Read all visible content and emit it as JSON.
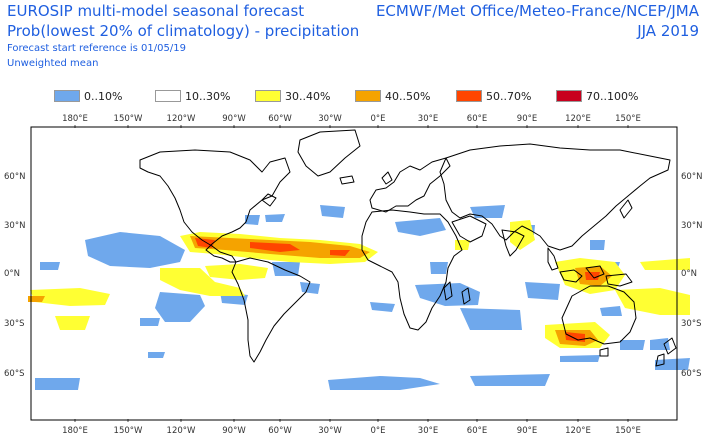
{
  "header": {
    "title_line1": "EUROSIP multi-model seasonal forecast",
    "title_line2": "Prob(lowest 20% of climatology) - precipitation",
    "forecast_ref": "Forecast start reference is 01/05/19",
    "mean_type": "Unweighted mean",
    "centres": "ECMWF/Met Office/Meteo-France/NCEP/JMA",
    "season": "JJA 2019"
  },
  "legend": [
    {
      "label": "0..10%",
      "color": "#6fa8ec"
    },
    {
      "label": "10..30%",
      "color": "#ffffff"
    },
    {
      "label": "30..40%",
      "color": "#ffff33"
    },
    {
      "label": "40..50%",
      "color": "#f5a300"
    },
    {
      "label": "50..70%",
      "color": "#ff4500"
    },
    {
      "label": "70..100%",
      "color": "#c8001e"
    }
  ],
  "axes": {
    "lon_ticks": [
      "180°E",
      "150°W",
      "120°W",
      "90°W",
      "60°W",
      "30°W",
      "0°E",
      "30°E",
      "60°E",
      "90°E",
      "120°E",
      "150°E"
    ],
    "lat_ticks_left": [
      "60°N",
      "30°N",
      "0°N",
      "30°S",
      "60°S"
    ],
    "lat_ticks_right": [
      "60°N",
      "30°N",
      "0°N",
      "30°S",
      "60°S"
    ]
  },
  "map": {
    "projection": "equirectangular",
    "lon_range": [
      165,
      525
    ],
    "lat_range": [
      -90,
      90
    ],
    "coast_color": "#000000",
    "frame_color": "#000000"
  }
}
